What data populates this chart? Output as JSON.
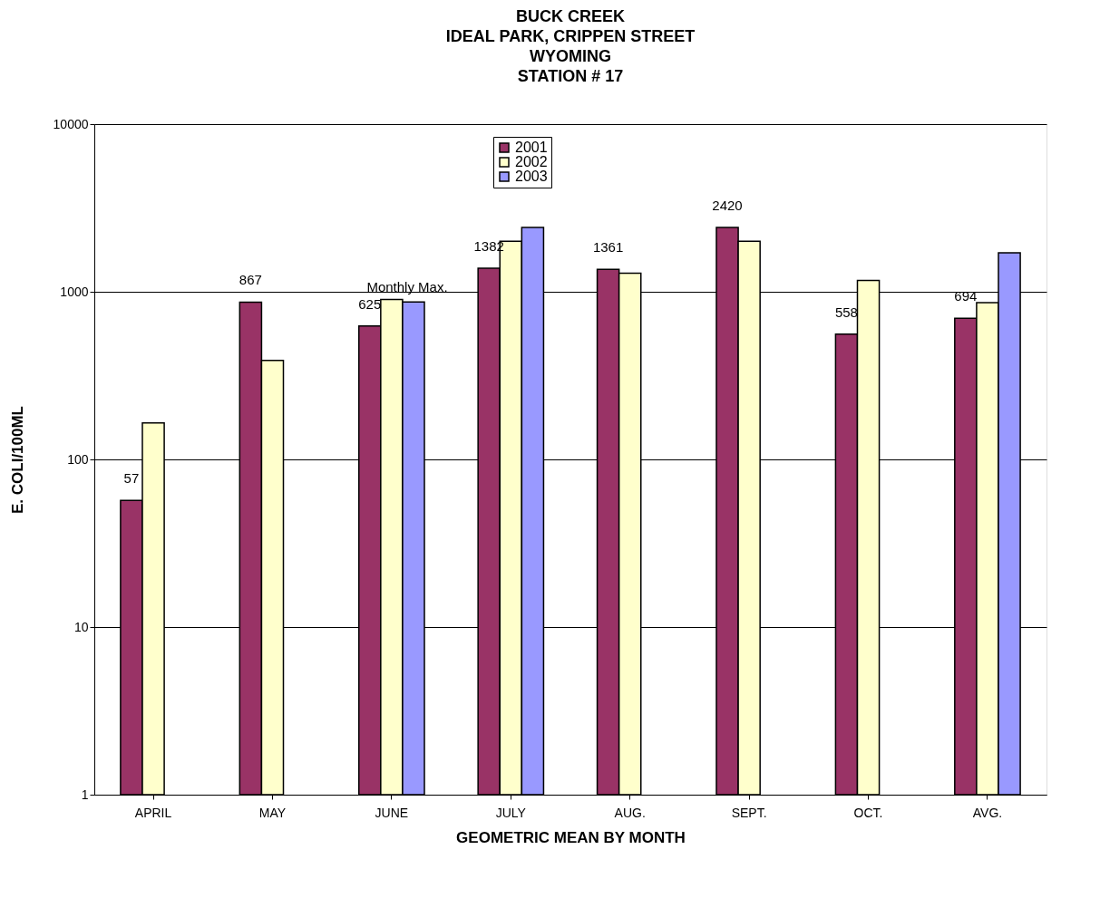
{
  "chart_data": {
    "type": "bar",
    "title": "BUCK CREEK\nIDEAL PARK, CRIPPEN STREET\nWYOMING\nSTATION # 17",
    "xlabel": "GEOMETRIC MEAN BY MONTH",
    "ylabel": "E. COLI/100ML",
    "categories": [
      "APRIL",
      "MAY",
      "JUNE",
      "JULY",
      "AUG.",
      "SEPT.",
      "OCT.",
      "AVG."
    ],
    "series": [
      {
        "name": "2001",
        "color": "#993366",
        "values": [
          57,
          867,
          625,
          1382,
          1361,
          2420,
          558,
          694
        ],
        "value_labels": [
          "57",
          "867",
          "625",
          "1382",
          "1361",
          "2420",
          "558",
          "694"
        ]
      },
      {
        "name": "2002",
        "color": "#ffffcc",
        "values": [
          165,
          390,
          900,
          2000,
          1290,
          2000,
          1170,
          860
        ]
      },
      {
        "name": "2003",
        "color": "#9999ff",
        "values": [
          null,
          null,
          870,
          2420,
          null,
          null,
          null,
          1710
        ]
      }
    ],
    "annotations": [
      "Monthly Max."
    ],
    "log": true,
    "ylim": [
      1,
      10000
    ],
    "yticks": [
      1,
      10,
      100,
      1000,
      10000
    ],
    "grid": "y",
    "legend": "top"
  }
}
